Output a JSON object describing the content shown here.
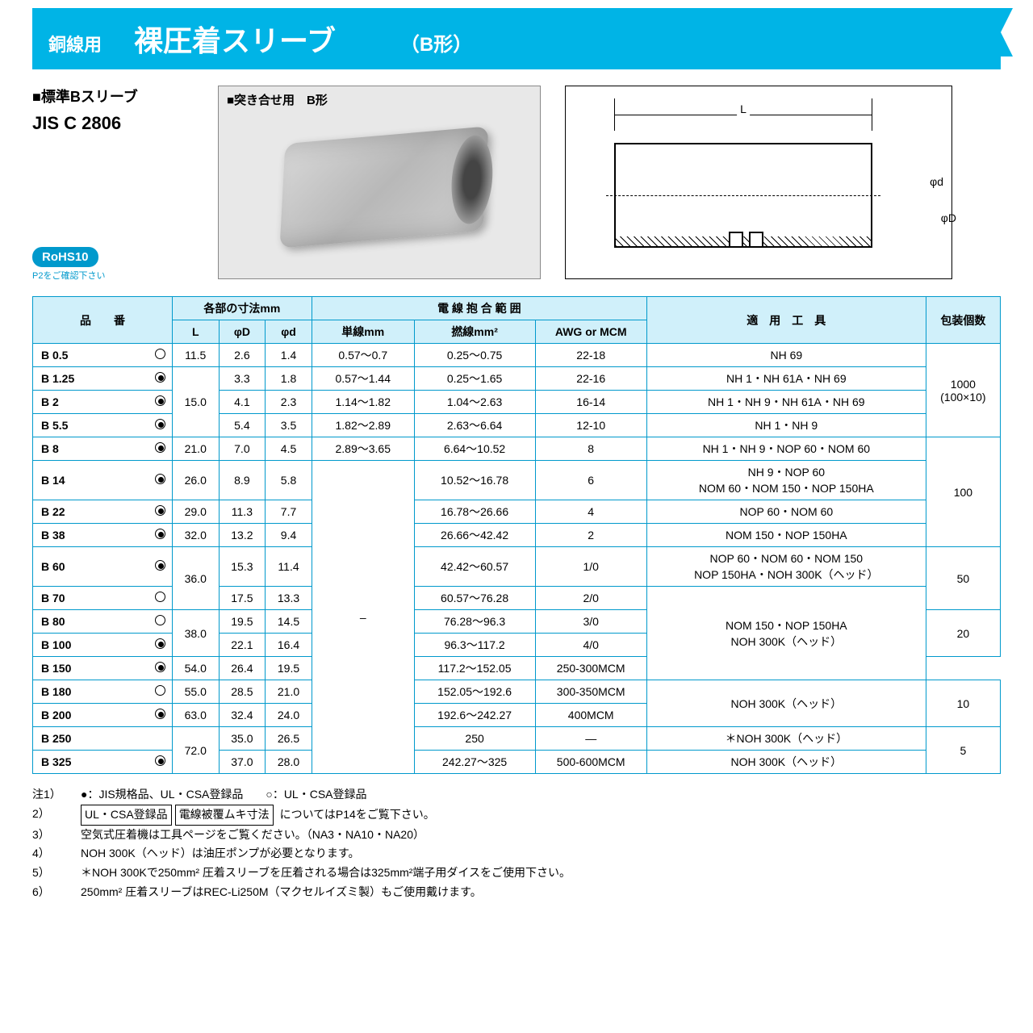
{
  "header": {
    "sub": "銅線用",
    "main": "裸圧着スリーブ",
    "shape": "（B形）"
  },
  "subtitle": "■標準Bスリーブ",
  "jis": "JIS C 2806",
  "photo_label": "■突き合せ用　B形",
  "diagram": {
    "L": "L",
    "phi_d": "φd",
    "phi_D": "φD"
  },
  "rohs": {
    "badge": "RoHS10",
    "note": "P2をご確認下さい"
  },
  "thead": {
    "pn": "品　　番",
    "dims": "各部の寸法mm",
    "L": "L",
    "D": "φD",
    "d": "φd",
    "range": "電 線 抱 合 範 囲",
    "single": "単線mm",
    "stranded": "撚線mm²",
    "awg": "AWG or MCM",
    "tool": "適　用　工　具",
    "pack": "包装個数"
  },
  "rows": [
    {
      "pn": "B 0.5",
      "mark": "empty",
      "L": "11.5",
      "D": "2.6",
      "d": "1.4",
      "s": "0.57～0.7",
      "st": "0.25～0.75",
      "awg": "22-18",
      "tool": "NH 69"
    },
    {
      "pn": "B 1.25",
      "mark": "dot",
      "D": "3.3",
      "d": "1.8",
      "s": "0.57～1.44",
      "st": "0.25～1.65",
      "awg": "22-16",
      "tool": "NH 1・NH 61A・NH 69"
    },
    {
      "pn": "B 2",
      "mark": "dot",
      "L": "15.0",
      "D": "4.1",
      "d": "2.3",
      "s": "1.14～1.82",
      "st": "1.04～2.63",
      "awg": "16-14",
      "tool": "NH 1・NH 9・NH 61A・NH 69"
    },
    {
      "pn": "B 5.5",
      "mark": "dot",
      "D": "5.4",
      "d": "3.5",
      "s": "1.82～2.89",
      "st": "2.63～6.64",
      "awg": "12-10",
      "tool": "NH 1・NH 9"
    },
    {
      "pn": "B 8",
      "mark": "dot",
      "L": "21.0",
      "D": "7.0",
      "d": "4.5",
      "s": "2.89～3.65",
      "st": "6.64～10.52",
      "awg": "8",
      "tool": "NH 1・NH 9・NOP 60・NOM 60"
    },
    {
      "pn": "B 14",
      "mark": "dot",
      "L": "26.0",
      "D": "8.9",
      "d": "5.8",
      "st": "10.52～16.78",
      "awg": "6",
      "tool": "NH 9・NOP 60\nNOM 60・NOM 150・NOP 150HA"
    },
    {
      "pn": "B 22",
      "mark": "dot",
      "L": "29.0",
      "D": "11.3",
      "d": "7.7",
      "st": "16.78～26.66",
      "awg": "4",
      "tool": "NOP 60・NOM 60"
    },
    {
      "pn": "B 38",
      "mark": "dot",
      "L": "32.0",
      "D": "13.2",
      "d": "9.4",
      "st": "26.66～42.42",
      "awg": "2",
      "tool": "NOM 150・NOP 150HA"
    },
    {
      "pn": "B 60",
      "mark": "dot",
      "D": "15.3",
      "d": "11.4",
      "st": "42.42～60.57",
      "awg": "1/0",
      "tool": "NOP 60・NOM 60・NOM 150\nNOP 150HA・NOH 300K（ヘッド）"
    },
    {
      "pn": "B 70",
      "mark": "empty",
      "L": "36.0",
      "D": "17.5",
      "d": "13.3",
      "st": "60.57～76.28",
      "awg": "2/0"
    },
    {
      "pn": "B 80",
      "mark": "empty",
      "D": "19.5",
      "d": "14.5",
      "st": "76.28～96.3",
      "awg": "3/0",
      "tool": "NOM 150・NOP 150HA\nNOH 300K（ヘッド）"
    },
    {
      "pn": "B 100",
      "mark": "dot",
      "L": "38.0",
      "D": "22.1",
      "d": "16.4",
      "st": "96.3～117.2",
      "awg": "4/0"
    },
    {
      "pn": "B 150",
      "mark": "dot",
      "L": "54.0",
      "D": "26.4",
      "d": "19.5",
      "st": "117.2～152.05",
      "awg": "250-300MCM"
    },
    {
      "pn": "B 180",
      "mark": "empty",
      "L": "55.0",
      "D": "28.5",
      "d": "21.0",
      "st": "152.05～192.6",
      "awg": "300-350MCM",
      "tool": "NOH 300K（ヘッド）"
    },
    {
      "pn": "B 200",
      "mark": "dot",
      "L": "63.0",
      "D": "32.4",
      "d": "24.0",
      "st": "192.6～242.27",
      "awg": "400MCM"
    },
    {
      "pn": "B 250",
      "D": "35.0",
      "d": "26.5",
      "st": "250",
      "awg": "—",
      "tool": "＊NOH 300K（ヘッド）"
    },
    {
      "pn": "B 325",
      "mark": "dot",
      "L": "72.0",
      "D": "37.0",
      "d": "28.0",
      "st": "242.27～325",
      "awg": "500-600MCM",
      "tool": "NOH 300K（ヘッド）"
    }
  ],
  "packs": {
    "p1000": "1000\n(100×10)",
    "p100": "100",
    "p50": "50",
    "p20": "20",
    "p10": "10",
    "p5": "5"
  },
  "single_dash": "–",
  "notes_label": "注1）",
  "notes": [
    {
      "n": "注1）",
      "t": "●：JIS規格品、UL・CSA登録品　　○：UL・CSA登録品"
    },
    {
      "n": "2）",
      "boxes": [
        "UL・CSA登録品",
        "電線被覆ムキ寸法"
      ],
      "t": " についてはP14をご覧下さい。"
    },
    {
      "n": "3）",
      "t": "空気式圧着機は工具ページをご覧ください。（NA3・NA10・NA20）"
    },
    {
      "n": "4）",
      "t": "NOH 300K（ヘッド）は油圧ポンプが必要となります。"
    },
    {
      "n": "5）",
      "t": "＊NOH 300Kで250mm² 圧着スリーブを圧着される場合は325mm²端子用ダイスをご使用下さい。"
    },
    {
      "n": "6）",
      "t": "250mm² 圧着スリーブはREC-Li250M（マクセルイズミ製）もご使用戴けます。"
    }
  ],
  "colors": {
    "accent": "#00b4e6",
    "header_bg": "#d0f0fa",
    "border": "#0099cc"
  }
}
